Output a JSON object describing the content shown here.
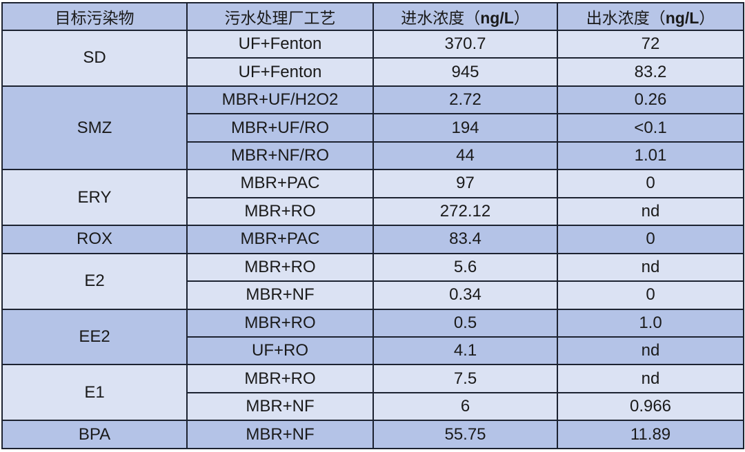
{
  "header": {
    "pollutant": "目标污染物",
    "process": "污水处理厂工艺",
    "influent_prefix": "进水浓度（",
    "influent_unit": "ng/L",
    "influent_suffix": "）",
    "effluent_prefix": "出水浓度（",
    "effluent_unit": "ng/L",
    "effluent_suffix": "）"
  },
  "colors": {
    "header": "#b7c5e7",
    "light_row": "#dbe2f3",
    "dark_row": "#b4c3e7",
    "border": "#1c2230"
  },
  "groups": [
    {
      "name": "SD",
      "rows": [
        {
          "process": "UF+Fenton",
          "influent": "370.7",
          "effluent": "72"
        },
        {
          "process": "UF+Fenton",
          "influent": "945",
          "effluent": "83.2"
        }
      ]
    },
    {
      "name": "SMZ",
      "rows": [
        {
          "process": "MBR+UF/H2O2",
          "influent": "2.72",
          "effluent": "0.26"
        },
        {
          "process": "MBR+UF/RO",
          "influent": "194",
          "effluent": "<0.1"
        },
        {
          "process": "MBR+NF/RO",
          "influent": "44",
          "effluent": "1.01"
        }
      ]
    },
    {
      "name": "ERY",
      "rows": [
        {
          "process": "MBR+PAC",
          "influent": "97",
          "effluent": "0"
        },
        {
          "process": "MBR+RO",
          "influent": "272.12",
          "effluent": "nd"
        }
      ]
    },
    {
      "name": "ROX",
      "rows": [
        {
          "process": "MBR+PAC",
          "influent": "83.4",
          "effluent": "0"
        }
      ]
    },
    {
      "name": "E2",
      "rows": [
        {
          "process": "MBR+RO",
          "influent": "5.6",
          "effluent": "nd"
        },
        {
          "process": "MBR+NF",
          "influent": "0.34",
          "effluent": "0"
        }
      ]
    },
    {
      "name": "EE2",
      "rows": [
        {
          "process": "MBR+RO",
          "influent": "0.5",
          "effluent": "1.0"
        },
        {
          "process": "UF+RO",
          "influent": "4.1",
          "effluent": "nd"
        }
      ]
    },
    {
      "name": "E1",
      "rows": [
        {
          "process": "MBR+RO",
          "influent": "7.5",
          "effluent": "nd"
        },
        {
          "process": "MBR+NF",
          "influent": "6",
          "effluent": "0.966"
        }
      ]
    },
    {
      "name": "BPA",
      "rows": [
        {
          "process": "MBR+NF",
          "influent": "55.75",
          "effluent": "11.89"
        }
      ]
    }
  ]
}
